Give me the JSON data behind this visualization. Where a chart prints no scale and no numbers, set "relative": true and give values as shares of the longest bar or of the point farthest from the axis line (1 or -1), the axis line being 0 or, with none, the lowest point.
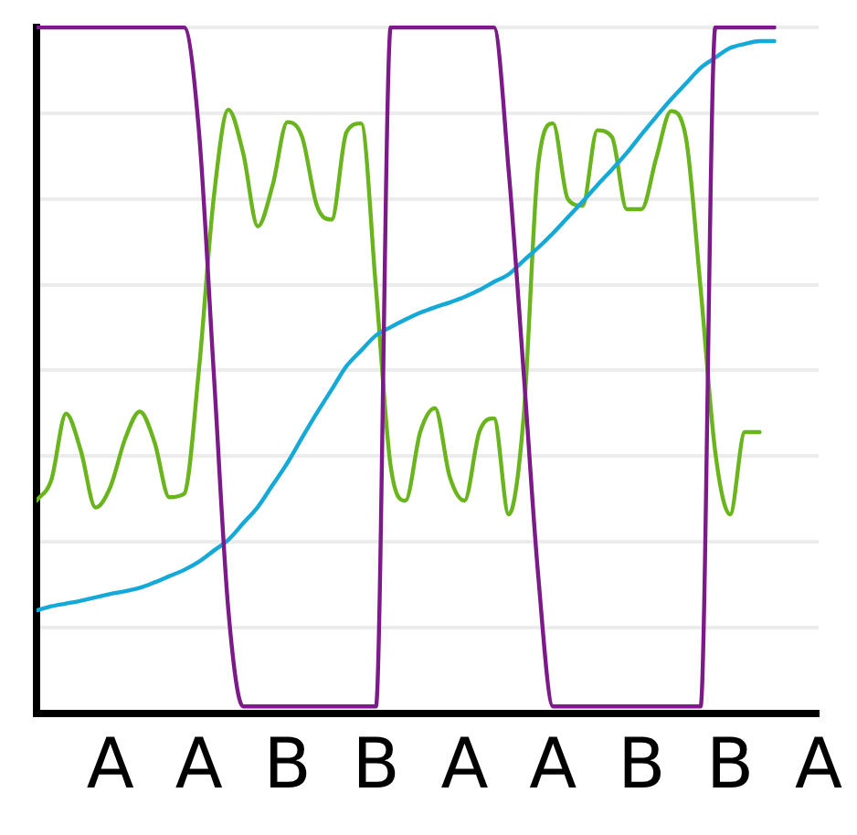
{
  "chart_data": {
    "type": "line",
    "relative": true,
    "grid": "y",
    "legend": false,
    "marker": "none",
    "line_style": "solid",
    "categories": [
      null,
      null,
      null,
      null,
      null,
      "A",
      null,
      null,
      null,
      null,
      null,
      "A",
      null,
      null,
      null,
      null,
      null,
      "B",
      null,
      null,
      null,
      null,
      null,
      "B",
      null,
      null,
      null,
      null,
      null,
      "A",
      null,
      null,
      null,
      null,
      null,
      "A",
      null,
      null,
      null,
      null,
      null,
      "B",
      null,
      null,
      null,
      null,
      null,
      "B",
      null,
      null,
      null,
      null,
      null,
      "A"
    ],
    "series": [
      {
        "color": "#7b1a88",
        "values": [
          1,
          1,
          1,
          1,
          1,
          1,
          1,
          1,
          1,
          1,
          1,
          0.85,
          0.5,
          0.15,
          0.01,
          0.01,
          0.01,
          0.01,
          0.01,
          0.01,
          0.01,
          0.01,
          0.01,
          0.01,
          1,
          1,
          1,
          1,
          1,
          1,
          1,
          1,
          0.79,
          0.5,
          0.2,
          0.01,
          0.01,
          0.01,
          0.01,
          0.01,
          0.01,
          0.01,
          0.01,
          0.01,
          0.01,
          0.01,
          1,
          1,
          1,
          1,
          1,
          null,
          null,
          null
        ]
      },
      {
        "color": "#14a9d6",
        "values": [
          0.15,
          0.156,
          0.16,
          0.164,
          0.169,
          0.174,
          0.178,
          0.183,
          0.191,
          0.2,
          0.209,
          0.221,
          0.237,
          0.253,
          0.277,
          0.301,
          0.333,
          0.365,
          0.402,
          0.438,
          0.472,
          0.506,
          0.529,
          0.551,
          0.563,
          0.574,
          0.584,
          0.592,
          0.599,
          0.607,
          0.617,
          0.629,
          0.64,
          0.66,
          0.679,
          0.7,
          0.723,
          0.746,
          0.77,
          0.793,
          0.817,
          0.844,
          0.87,
          0.895,
          0.918,
          0.941,
          0.956,
          0.97,
          0.976,
          0.98,
          0.98,
          null,
          null,
          null
        ]
      },
      {
        "color": "#6ab51e",
        "values": [
          0.31,
          0.34,
          0.437,
          0.383,
          0.3,
          0.33,
          0.4,
          0.44,
          0.395,
          0.315,
          0.32,
          0.5,
          0.75,
          0.88,
          0.817,
          0.71,
          0.77,
          0.862,
          0.84,
          0.74,
          0.72,
          0.847,
          0.86,
          0.62,
          0.36,
          0.31,
          0.41,
          0.445,
          0.345,
          0.31,
          0.41,
          0.43,
          0.29,
          0.43,
          0.8,
          0.86,
          0.75,
          0.74,
          0.85,
          0.84,
          0.735,
          0.735,
          0.81,
          0.878,
          0.84,
          0.62,
          0.38,
          0.29,
          0.41,
          0.41,
          null,
          null,
          null,
          null
        ]
      }
    ]
  }
}
